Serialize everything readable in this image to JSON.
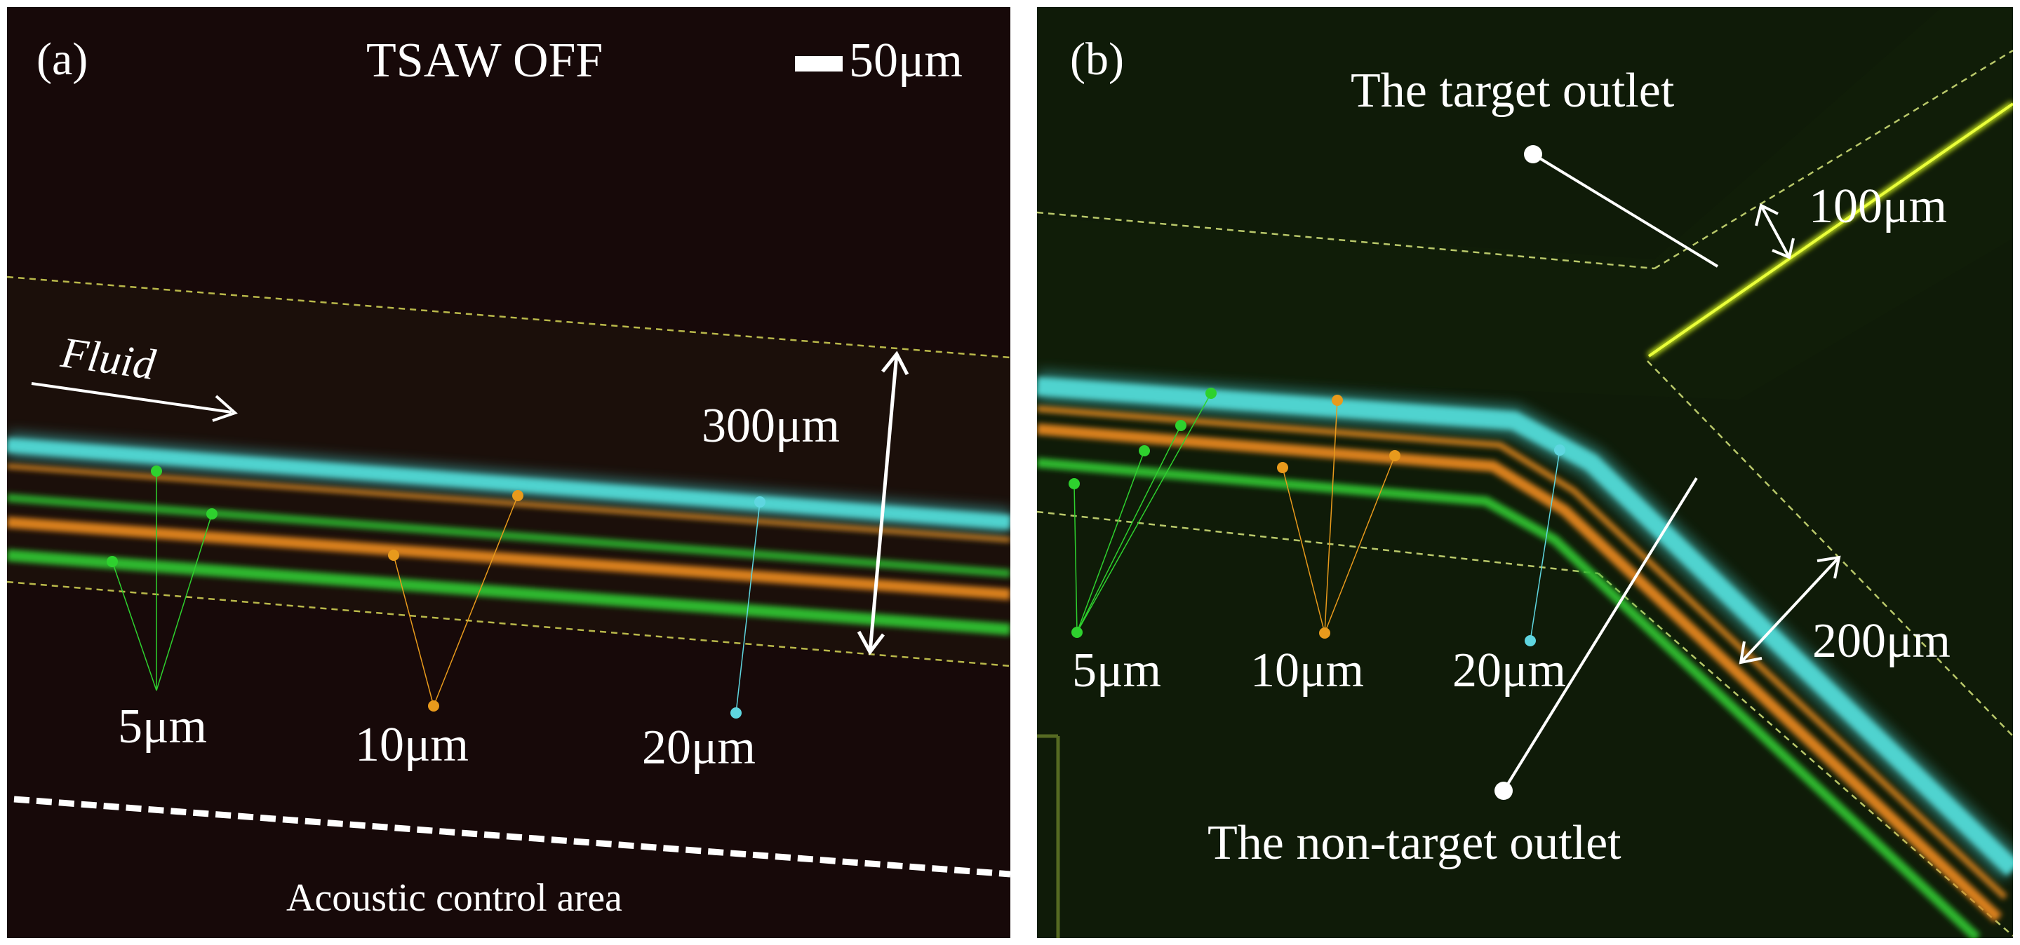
{
  "panel_a": {
    "label": "(a)",
    "title": "TSAW OFF",
    "scale_bar": "50μm",
    "fluid_label": "Fluid",
    "channel_width": "300μm",
    "particle_labels": [
      "5μm",
      "10μm",
      "20μm"
    ],
    "area_label": "Acoustic control area"
  },
  "panel_b": {
    "label": "(b)",
    "target_outlet": "The target outlet",
    "target_width": "100μm",
    "nontarget_width": "200μm",
    "particle_labels": [
      "5μm",
      "10μm",
      "20μm"
    ],
    "nontarget_outlet": "The non-target outlet"
  },
  "colors": {
    "particle_5um": "#2ed12e",
    "particle_10um": "#e89a1c",
    "particle_20um": "#5fd6e0"
  }
}
